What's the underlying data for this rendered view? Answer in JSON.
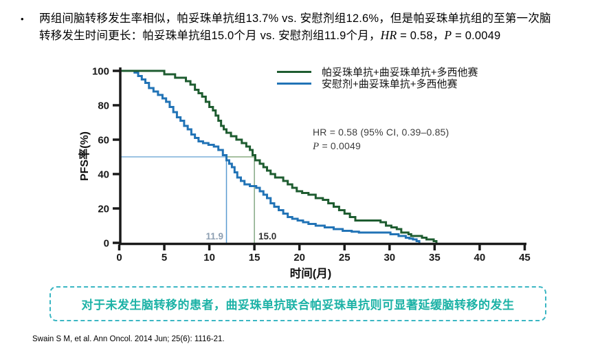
{
  "slide": {
    "bullet": {
      "line1": "两组间脑转移发生率相似，帕妥珠单抗组13.7% vs. 安慰剂组12.6%，但是帕妥珠单抗组的至第一次脑",
      "line2_pre": "转移发生时间更长：帕妥珠单抗组15.0个月 vs. 安慰剂组11.9个月，",
      "hr_label": "HR",
      "hr_value": " = 0.58，",
      "p_label": "P",
      "p_value": " = 0.0049",
      "marker": "•"
    },
    "callout": "对于未发生脑转移的患者，曲妥珠单抗联合帕妥珠单抗则可显著延缓脑转移的发生",
    "citation": "Swain S M, et al. Ann Oncol. 2014 Jun; 25(6): 1116-21.",
    "colors": {
      "callout_border": "#3ab6c3",
      "callout_text": "#1cb2a6",
      "axis": "#1a1a1a"
    }
  },
  "chart_data": {
    "type": "line",
    "subtype": "kaplan-meier-step",
    "title": "",
    "xlabel": "时间(月)",
    "ylabel": "PFS率(%)",
    "xlim": [
      0,
      45
    ],
    "ylim": [
      0,
      100
    ],
    "x_ticks": [
      0,
      5,
      10,
      15,
      20,
      25,
      30,
      35,
      40,
      45
    ],
    "y_ticks": [
      0,
      20,
      40,
      60,
      80,
      100
    ],
    "grid": false,
    "legend_position": "top-right-inside",
    "annotation": {
      "hr_line": "HR = 0.58 (95% CI, 0.39–0.85)",
      "p_label": "P",
      "p_value": " = 0.0049"
    },
    "medians": {
      "at_percent": 50,
      "pertuzumab_months": 15.0,
      "placebo_months": 11.9,
      "labels": {
        "pertuzumab": "15.0",
        "placebo": "11.9"
      }
    },
    "reference_colors": {
      "h_blue": "#9cc3e2",
      "h_green": "#a6c0a0",
      "v_blue": "#5a9bd0",
      "v_green": "#84a884"
    },
    "series": [
      {
        "name": "帕妥珠单抗+曲妥珠单抗+多西他赛",
        "color": "#1e5c30",
        "points": [
          [
            0,
            100
          ],
          [
            5.0,
            98
          ],
          [
            6.2,
            96
          ],
          [
            7.4,
            94
          ],
          [
            7.9,
            92
          ],
          [
            8.4,
            89
          ],
          [
            8.8,
            87
          ],
          [
            9.2,
            85
          ],
          [
            9.6,
            82
          ],
          [
            10.0,
            79
          ],
          [
            10.4,
            77
          ],
          [
            10.7,
            74
          ],
          [
            11.0,
            71
          ],
          [
            11.3,
            68
          ],
          [
            11.6,
            66
          ],
          [
            11.9,
            64
          ],
          [
            12.4,
            62
          ],
          [
            13.0,
            60
          ],
          [
            13.6,
            58
          ],
          [
            14.1,
            56
          ],
          [
            14.5,
            54
          ],
          [
            14.8,
            51
          ],
          [
            15.1,
            48
          ],
          [
            15.6,
            46
          ],
          [
            16.0,
            44
          ],
          [
            16.4,
            42
          ],
          [
            16.8,
            40
          ],
          [
            17.3,
            38
          ],
          [
            18.2,
            36
          ],
          [
            18.7,
            34
          ],
          [
            19.2,
            32
          ],
          [
            19.7,
            30
          ],
          [
            20.3,
            29
          ],
          [
            21.0,
            28
          ],
          [
            21.8,
            26
          ],
          [
            22.6,
            25
          ],
          [
            23.2,
            23
          ],
          [
            23.8,
            21
          ],
          [
            24.4,
            19
          ],
          [
            25.0,
            17
          ],
          [
            25.6,
            15
          ],
          [
            26.2,
            13
          ],
          [
            29.0,
            12
          ],
          [
            29.6,
            10
          ],
          [
            30.2,
            9
          ],
          [
            30.8,
            8
          ],
          [
            31.3,
            6
          ],
          [
            32.1,
            5
          ],
          [
            32.4,
            4
          ],
          [
            33.6,
            3
          ],
          [
            34.1,
            2
          ],
          [
            34.9,
            1
          ],
          [
            35.2,
            0
          ]
        ]
      },
      {
        "name": "安慰剂+曲妥珠单抗+多西他赛",
        "color": "#2173b6",
        "points": [
          [
            0,
            100
          ],
          [
            1.7,
            99
          ],
          [
            2.1,
            97
          ],
          [
            2.5,
            95
          ],
          [
            2.9,
            93
          ],
          [
            3.3,
            90
          ],
          [
            3.8,
            88
          ],
          [
            4.3,
            86
          ],
          [
            4.8,
            84
          ],
          [
            5.2,
            82
          ],
          [
            5.6,
            79
          ],
          [
            6.0,
            76
          ],
          [
            6.4,
            73
          ],
          [
            6.8,
            71
          ],
          [
            7.2,
            68
          ],
          [
            7.6,
            66
          ],
          [
            8.0,
            63
          ],
          [
            8.4,
            61
          ],
          [
            8.8,
            59
          ],
          [
            9.3,
            58
          ],
          [
            9.9,
            57
          ],
          [
            10.5,
            56
          ],
          [
            11.0,
            54
          ],
          [
            11.5,
            51
          ],
          [
            11.9,
            48
          ],
          [
            12.2,
            46
          ],
          [
            12.5,
            44
          ],
          [
            12.8,
            41
          ],
          [
            13.1,
            38
          ],
          [
            13.5,
            36
          ],
          [
            13.9,
            34
          ],
          [
            14.5,
            33
          ],
          [
            15.2,
            32
          ],
          [
            15.6,
            30
          ],
          [
            16.0,
            28
          ],
          [
            16.4,
            26
          ],
          [
            16.8,
            23
          ],
          [
            17.2,
            21
          ],
          [
            17.7,
            19
          ],
          [
            18.2,
            17
          ],
          [
            18.7,
            15
          ],
          [
            19.2,
            14
          ],
          [
            19.8,
            13
          ],
          [
            20.4,
            12
          ],
          [
            21.0,
            11
          ],
          [
            21.8,
            10
          ],
          [
            22.8,
            9
          ],
          [
            23.8,
            8
          ],
          [
            24.8,
            7
          ],
          [
            25.8,
            6.5
          ],
          [
            26.6,
            6
          ],
          [
            30.1,
            5
          ],
          [
            31.0,
            4
          ],
          [
            31.8,
            3
          ],
          [
            32.2,
            2.5
          ],
          [
            32.6,
            2
          ],
          [
            33.0,
            1
          ],
          [
            33.3,
            0
          ]
        ]
      }
    ]
  }
}
